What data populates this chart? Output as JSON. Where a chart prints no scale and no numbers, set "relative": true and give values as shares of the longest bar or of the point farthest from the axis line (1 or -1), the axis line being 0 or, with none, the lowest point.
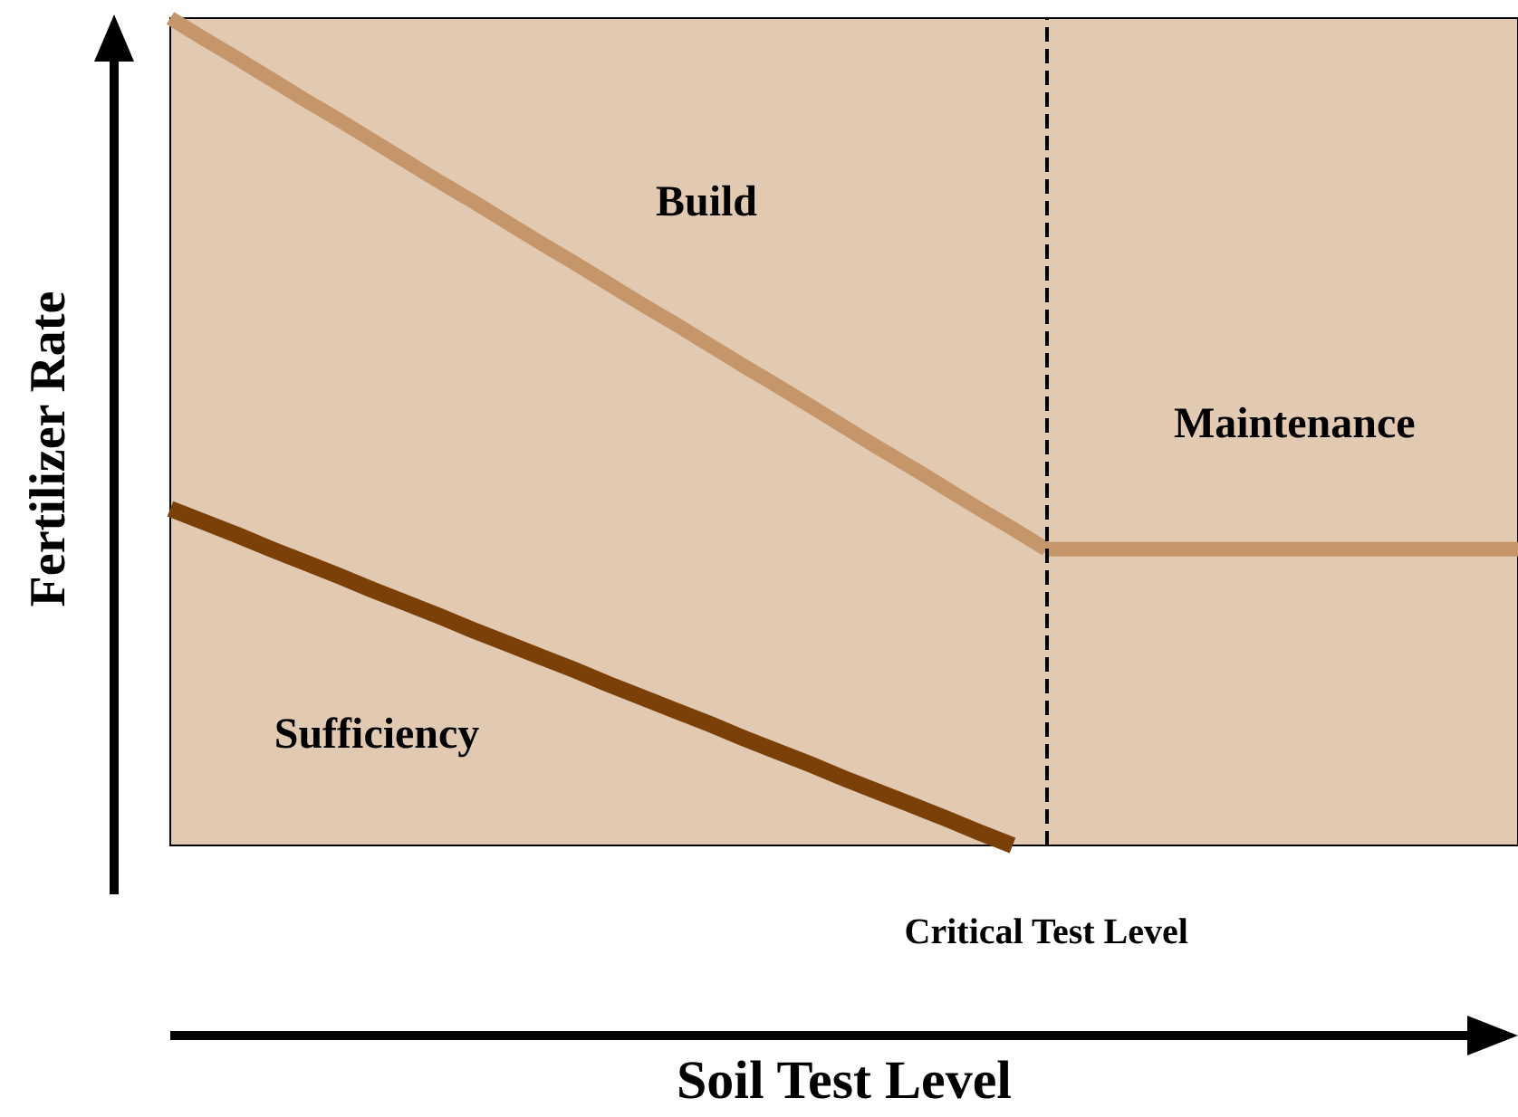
{
  "chart_data": {
    "type": "line",
    "relative": true,
    "xlabel": "Soil Test Level",
    "ylabel": "Fertilizer Rate",
    "tick_labels": false,
    "grid": false,
    "legend": false,
    "marker": "none",
    "line_style": "solid",
    "categories": [
      null,
      null,
      null,
      null,
      null,
      null,
      null,
      null,
      null,
      null,
      null,
      null,
      null,
      null,
      null,
      null,
      null,
      null,
      null,
      null,
      null,
      null,
      null,
      null,
      null,
      null,
      null,
      null,
      null,
      null,
      null,
      null,
      null,
      null,
      null,
      null,
      null,
      null,
      null,
      null,
      null
    ],
    "series": [
      {
        "name": "Build",
        "color": "#c4966a",
        "values": [
          1,
          0.975,
          0.951,
          0.926,
          0.901,
          0.877,
          0.852,
          0.827,
          0.802,
          0.778,
          0.753,
          0.728,
          0.704,
          0.679,
          0.654,
          0.63,
          0.605,
          0.58,
          0.556,
          0.531,
          0.506,
          0.481,
          0.457,
          0.432,
          0.407,
          0.383,
          0.358,
          null,
          null,
          null,
          null,
          null,
          null,
          null,
          null,
          null,
          null,
          null,
          null,
          null,
          null
        ]
      },
      {
        "name": "Maintenance",
        "color": "#c4966a",
        "values": [
          null,
          null,
          null,
          null,
          null,
          null,
          null,
          null,
          null,
          null,
          null,
          null,
          null,
          null,
          null,
          null,
          null,
          null,
          null,
          null,
          null,
          null,
          null,
          null,
          null,
          null,
          0.358,
          0.358,
          0.358,
          0.358,
          0.358,
          0.358,
          0.358,
          0.358,
          0.358,
          0.358,
          0.358,
          0.358,
          0.358,
          0.358,
          0.358
        ]
      },
      {
        "name": "Sufficiency",
        "color": "#7b4008",
        "values": [
          0.407,
          0.391,
          0.375,
          0.358,
          0.342,
          0.326,
          0.309,
          0.293,
          0.277,
          0.26,
          0.244,
          0.228,
          0.212,
          0.195,
          0.179,
          0.163,
          0.147,
          0.13,
          0.114,
          0.098,
          0.081,
          0.065,
          0.049,
          0.033,
          0.016,
          0,
          null,
          null,
          null,
          null,
          null,
          null,
          null,
          null,
          null,
          null,
          null,
          null,
          null,
          null,
          null
        ]
      }
    ],
    "ref_lines": [
      {
        "axis": "x",
        "label": "Critical Test Level",
        "color": "#000000",
        "line_style": "dashed"
      }
    ]
  }
}
